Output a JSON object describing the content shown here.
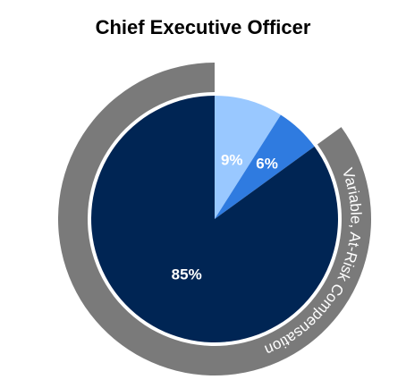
{
  "chart_data": {
    "type": "pie",
    "title": "Chief Executive Officer",
    "categories": [
      "9%",
      "6%",
      "85%"
    ],
    "values": [
      9,
      6,
      85
    ],
    "colors": [
      "#99c8ff",
      "#2f7be0",
      "#002554"
    ],
    "ring": {
      "label": "Variable, At-Risk Compensation",
      "color": "#7a7a7a",
      "covers_percent": 91
    }
  }
}
